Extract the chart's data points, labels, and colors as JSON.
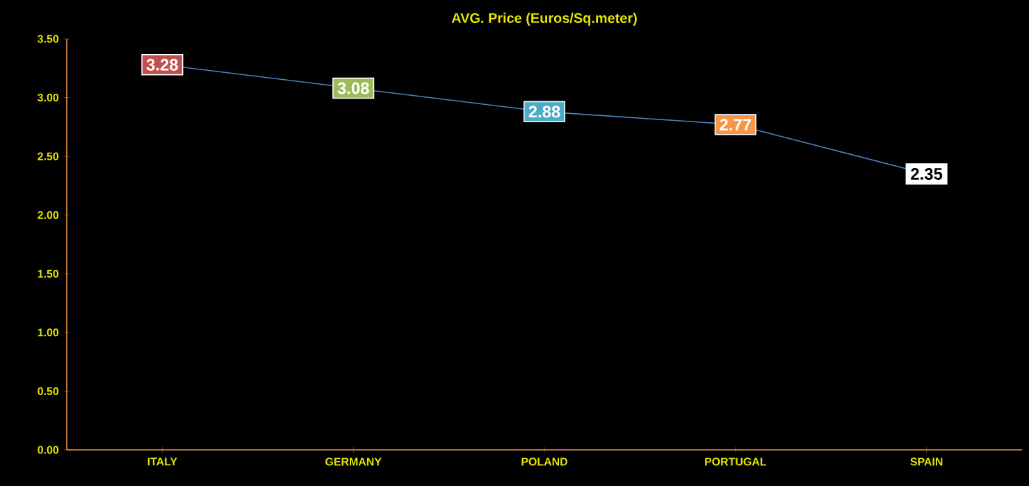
{
  "chart_data": {
    "type": "line",
    "title": "AVG. Price (Euros/Sq.meter)",
    "categories": [
      "ITALY",
      "GERMANY",
      "POLAND",
      "PORTUGAL",
      "SPAIN"
    ],
    "series": [
      {
        "color": "#4f81bd",
        "marker": "square",
        "values": [
          3.28,
          3.08,
          2.88,
          2.77,
          2.35
        ],
        "colors": [
          "#c0504d",
          "#9bbb59",
          "#4bacc6",
          "#f79646",
          "#ffffff"
        ]
      }
    ],
    "ylim": [
      0,
      3.5
    ],
    "yticks": [
      {
        "value": 0,
        "label": "0.00"
      },
      {
        "value": 0.5,
        "label": "0.50"
      },
      {
        "value": 1,
        "label": "1.00"
      },
      {
        "value": 1.5,
        "label": "1.50"
      },
      {
        "value": 2,
        "label": "2.00"
      },
      {
        "value": 2.5,
        "label": "2.50"
      },
      {
        "value": 3,
        "label": "3.00"
      },
      {
        "value": 3.5,
        "label": "3.50"
      }
    ],
    "data_labels": true,
    "grid": false,
    "line_style": "solid"
  }
}
